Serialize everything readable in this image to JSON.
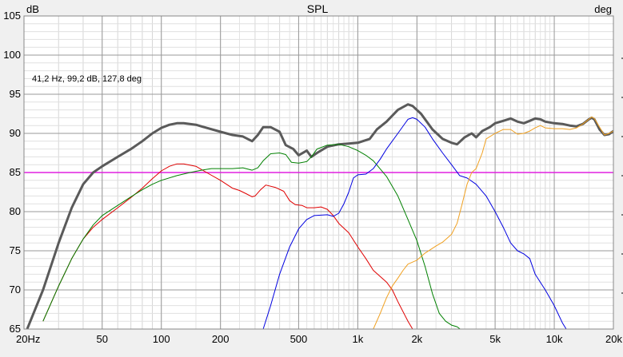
{
  "chart_data": {
    "type": "line",
    "title": "SPL",
    "ylabel": "dB",
    "y2label": "deg",
    "xscale": "log",
    "xlim": [
      20,
      20000
    ],
    "ylim": [
      65,
      105
    ],
    "x_ticks": [
      {
        "value": 20,
        "label": "20Hz"
      },
      {
        "value": 50,
        "label": "50"
      },
      {
        "value": 100,
        "label": "100"
      },
      {
        "value": 200,
        "label": "200"
      },
      {
        "value": 500,
        "label": "500"
      },
      {
        "value": 1000,
        "label": "1k"
      },
      {
        "value": 2000,
        "label": "2k"
      },
      {
        "value": 5000,
        "label": "5k"
      },
      {
        "value": 10000,
        "label": "10k"
      },
      {
        "value": 20000,
        "label": "20k"
      }
    ],
    "y_ticks": [
      105,
      100,
      95,
      90,
      85,
      80,
      75,
      70,
      65
    ],
    "grid": true,
    "annotation": "41,2 Hz, 99,2 dB, 127,8 deg",
    "reference_line": {
      "y": 85,
      "color": "#e020e0"
    },
    "series": [
      {
        "color": "#5a5a5a",
        "width": 3,
        "points": [
          [
            20,
            64
          ],
          [
            25,
            70
          ],
          [
            30,
            76
          ],
          [
            35,
            80.5
          ],
          [
            40,
            83.5
          ],
          [
            45,
            85
          ],
          [
            50,
            85.8
          ],
          [
            60,
            87
          ],
          [
            70,
            88
          ],
          [
            80,
            89
          ],
          [
            90,
            90
          ],
          [
            100,
            90.7
          ],
          [
            110,
            91.1
          ],
          [
            120,
            91.3
          ],
          [
            130,
            91.3
          ],
          [
            150,
            91.1
          ],
          [
            170,
            90.7
          ],
          [
            200,
            90.2
          ],
          [
            230,
            89.8
          ],
          [
            260,
            89.6
          ],
          [
            290,
            89
          ],
          [
            310,
            89.8
          ],
          [
            330,
            90.8
          ],
          [
            360,
            90.8
          ],
          [
            400,
            90.2
          ],
          [
            430,
            88.5
          ],
          [
            470,
            88
          ],
          [
            500,
            87.2
          ],
          [
            550,
            87.8
          ],
          [
            580,
            87
          ],
          [
            620,
            87.5
          ],
          [
            700,
            88.3
          ],
          [
            800,
            88.6
          ],
          [
            900,
            88.7
          ],
          [
            1000,
            88.8
          ],
          [
            1150,
            89.3
          ],
          [
            1250,
            90.5
          ],
          [
            1400,
            91.5
          ],
          [
            1600,
            93
          ],
          [
            1800,
            93.7
          ],
          [
            1900,
            93.5
          ],
          [
            2100,
            92.5
          ],
          [
            2400,
            90.5
          ],
          [
            2700,
            89.3
          ],
          [
            3000,
            88.8
          ],
          [
            3200,
            88.6
          ],
          [
            3500,
            89.5
          ],
          [
            3800,
            90
          ],
          [
            4000,
            89.5
          ],
          [
            4300,
            90.3
          ],
          [
            4700,
            90.8
          ],
          [
            5000,
            91.3
          ],
          [
            5500,
            91.6
          ],
          [
            6000,
            91.9
          ],
          [
            6500,
            91.5
          ],
          [
            7000,
            91.3
          ],
          [
            7500,
            91.6
          ],
          [
            8000,
            91.9
          ],
          [
            8500,
            91.8
          ],
          [
            9000,
            91.5
          ],
          [
            10000,
            91.3
          ],
          [
            11000,
            91.2
          ],
          [
            12000,
            91
          ],
          [
            13000,
            90.9
          ],
          [
            14000,
            91.2
          ],
          [
            15000,
            91.8
          ],
          [
            15500,
            92
          ],
          [
            16000,
            91.8
          ],
          [
            17000,
            90.5
          ],
          [
            18000,
            89.8
          ],
          [
            19000,
            89.9
          ],
          [
            20000,
            90.3
          ]
        ]
      },
      {
        "color": "#e00000",
        "width": 1,
        "points": [
          [
            25,
            66
          ],
          [
            30,
            70.5
          ],
          [
            35,
            74
          ],
          [
            40,
            76.5
          ],
          [
            45,
            78
          ],
          [
            50,
            79
          ],
          [
            60,
            80.5
          ],
          [
            70,
            81.8
          ],
          [
            80,
            83
          ],
          [
            90,
            84.2
          ],
          [
            100,
            85.2
          ],
          [
            110,
            85.8
          ],
          [
            120,
            86.1
          ],
          [
            130,
            86.1
          ],
          [
            150,
            85.8
          ],
          [
            170,
            85
          ],
          [
            200,
            84
          ],
          [
            230,
            83
          ],
          [
            250,
            82.7
          ],
          [
            270,
            82.3
          ],
          [
            290,
            81.9
          ],
          [
            300,
            82
          ],
          [
            320,
            82.8
          ],
          [
            340,
            83.4
          ],
          [
            380,
            83.1
          ],
          [
            420,
            82.6
          ],
          [
            450,
            81.4
          ],
          [
            480,
            80.9
          ],
          [
            520,
            80.8
          ],
          [
            550,
            80.5
          ],
          [
            600,
            80.5
          ],
          [
            650,
            80.6
          ],
          [
            700,
            80.3
          ],
          [
            750,
            79.5
          ],
          [
            800,
            78.5
          ],
          [
            900,
            77.3
          ],
          [
            1000,
            75.5
          ],
          [
            1100,
            74
          ],
          [
            1200,
            72.5
          ],
          [
            1400,
            71
          ],
          [
            1500,
            70
          ],
          [
            1600,
            68.5
          ],
          [
            1800,
            66
          ],
          [
            1900,
            65
          ]
        ]
      },
      {
        "color": "#008000",
        "width": 1,
        "points": [
          [
            25,
            66
          ],
          [
            30,
            70.5
          ],
          [
            35,
            74
          ],
          [
            40,
            76.5
          ],
          [
            45,
            78.3
          ],
          [
            50,
            79.5
          ],
          [
            60,
            80.8
          ],
          [
            70,
            81.9
          ],
          [
            80,
            82.8
          ],
          [
            90,
            83.5
          ],
          [
            100,
            84
          ],
          [
            120,
            84.6
          ],
          [
            140,
            85
          ],
          [
            160,
            85.3
          ],
          [
            180,
            85.5
          ],
          [
            200,
            85.5
          ],
          [
            230,
            85.5
          ],
          [
            260,
            85.6
          ],
          [
            290,
            85.3
          ],
          [
            310,
            85.6
          ],
          [
            330,
            86.5
          ],
          [
            360,
            87.4
          ],
          [
            400,
            87.5
          ],
          [
            430,
            87.3
          ],
          [
            460,
            86.3
          ],
          [
            500,
            86.2
          ],
          [
            550,
            86.4
          ],
          [
            580,
            87
          ],
          [
            620,
            88
          ],
          [
            700,
            88.5
          ],
          [
            800,
            88.6
          ],
          [
            900,
            88.3
          ],
          [
            1000,
            87.8
          ],
          [
            1100,
            87.2
          ],
          [
            1200,
            86.5
          ],
          [
            1400,
            84.5
          ],
          [
            1600,
            82
          ],
          [
            1800,
            79
          ],
          [
            2000,
            76.3
          ],
          [
            2200,
            73
          ],
          [
            2400,
            69.5
          ],
          [
            2600,
            67
          ],
          [
            2800,
            66
          ],
          [
            3000,
            65.5
          ],
          [
            3200,
            65.3
          ],
          [
            3400,
            64.8
          ]
        ]
      },
      {
        "color": "#0000e0",
        "width": 1,
        "points": [
          [
            330,
            65
          ],
          [
            360,
            68
          ],
          [
            400,
            72
          ],
          [
            450,
            75.5
          ],
          [
            500,
            77.8
          ],
          [
            550,
            79
          ],
          [
            600,
            79.5
          ],
          [
            700,
            79.6
          ],
          [
            750,
            79.4
          ],
          [
            800,
            79.8
          ],
          [
            850,
            81
          ],
          [
            900,
            82.5
          ],
          [
            950,
            84.3
          ],
          [
            1000,
            84.7
          ],
          [
            1100,
            84.8
          ],
          [
            1200,
            85.5
          ],
          [
            1300,
            86.7
          ],
          [
            1400,
            88
          ],
          [
            1600,
            90
          ],
          [
            1800,
            91.8
          ],
          [
            1900,
            92
          ],
          [
            2000,
            91.8
          ],
          [
            2200,
            90.8
          ],
          [
            2400,
            89.3
          ],
          [
            2700,
            87.5
          ],
          [
            3000,
            86
          ],
          [
            3300,
            84.6
          ],
          [
            3600,
            84.3
          ],
          [
            4000,
            83.5
          ],
          [
            4500,
            82
          ],
          [
            5000,
            80
          ],
          [
            5500,
            78
          ],
          [
            6000,
            76
          ],
          [
            6500,
            75
          ],
          [
            7000,
            74.6
          ],
          [
            7500,
            74
          ],
          [
            8000,
            72
          ],
          [
            9000,
            70
          ],
          [
            10000,
            68
          ],
          [
            11000,
            65.8
          ],
          [
            11500,
            65
          ]
        ]
      },
      {
        "color": "#f0a020",
        "width": 1,
        "points": [
          [
            1200,
            65
          ],
          [
            1300,
            67
          ],
          [
            1400,
            69
          ],
          [
            1500,
            70.5
          ],
          [
            1600,
            71.5
          ],
          [
            1700,
            72.5
          ],
          [
            1800,
            73.3
          ],
          [
            2000,
            73.8
          ],
          [
            2200,
            74.7
          ],
          [
            2500,
            75.6
          ],
          [
            2700,
            76.1
          ],
          [
            3000,
            77.1
          ],
          [
            3200,
            78.5
          ],
          [
            3400,
            81
          ],
          [
            3600,
            83.5
          ],
          [
            3800,
            85
          ],
          [
            4000,
            85.5
          ],
          [
            4300,
            87.5
          ],
          [
            4500,
            89.3
          ],
          [
            5000,
            90
          ],
          [
            5500,
            90.5
          ],
          [
            6000,
            90.5
          ],
          [
            6500,
            89.9
          ],
          [
            7000,
            90
          ],
          [
            7500,
            90.3
          ],
          [
            8000,
            90.7
          ],
          [
            8500,
            91
          ],
          [
            9000,
            90.7
          ],
          [
            10000,
            90.6
          ],
          [
            11000,
            90.6
          ],
          [
            12000,
            90.5
          ],
          [
            13000,
            90.7
          ],
          [
            14000,
            91.2
          ],
          [
            15000,
            91.8
          ],
          [
            15500,
            92.1
          ],
          [
            16000,
            91.9
          ],
          [
            17000,
            90.8
          ],
          [
            18000,
            89.8
          ],
          [
            19000,
            90
          ],
          [
            20000,
            90.3
          ]
        ]
      }
    ]
  }
}
